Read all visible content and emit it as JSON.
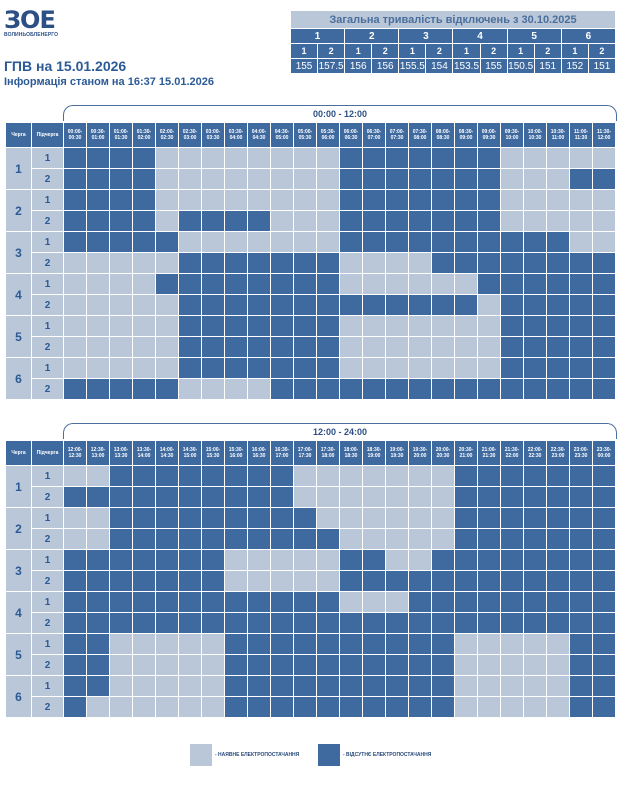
{
  "logo": {
    "main": "ЗОЕ",
    "sub": "ВОЛИНЬОБЛЕНЕРГО"
  },
  "title": "ГПВ на 15.01.2026",
  "subtitle": "Інформація станом на 16:37 15.01.2026",
  "summary": {
    "title": "Загальна тривалість відключень з 30.10.2025",
    "queues": [
      "1",
      "2",
      "3",
      "4",
      "5",
      "6"
    ],
    "subqueues": [
      "1",
      "2",
      "1",
      "2",
      "1",
      "2",
      "1",
      "2",
      "1",
      "2",
      "1",
      "2"
    ],
    "values": [
      "155",
      "157.5",
      "156",
      "156",
      "155.5",
      "154",
      "153.5",
      "155",
      "150.5",
      "151",
      "152",
      "151"
    ]
  },
  "headers": {
    "queue": "Черга",
    "subqueue": "Підчерга"
  },
  "colors": {
    "on": "#b9c7d8",
    "off": "#3f6aa0"
  },
  "sections": [
    {
      "label": "00:00 - 12:00",
      "times": [
        "00:00-00:30",
        "00:30-01:00",
        "01:00-01:30",
        "01:30-02:00",
        "02:00-02:30",
        "02:30-03:00",
        "03:00-03:30",
        "03:30-04:00",
        "04:00-04:30",
        "04:30-05:00",
        "05:00-05:30",
        "05:30-06:00",
        "06:00-06:30",
        "06:30-07:00",
        "07:00-07:30",
        "07:30-08:00",
        "08:00-08:30",
        "08:30-09:00",
        "09:00-09:30",
        "09:30-10:00",
        "10:00-10:30",
        "10:30-11:00",
        "11:00-11:30",
        "11:30-12:00"
      ],
      "rows": [
        {
          "queue": "1",
          "sub": "1",
          "off": [
            1,
            1,
            1,
            1,
            0,
            0,
            0,
            0,
            0,
            0,
            0,
            0,
            1,
            1,
            1,
            1,
            1,
            1,
            1,
            0,
            0,
            0,
            0,
            0
          ]
        },
        {
          "queue": "1",
          "sub": "2",
          "off": [
            1,
            1,
            1,
            1,
            0,
            0,
            0,
            0,
            0,
            0,
            0,
            0,
            1,
            1,
            1,
            1,
            1,
            1,
            1,
            0,
            0,
            0,
            1,
            1
          ]
        },
        {
          "queue": "2",
          "sub": "1",
          "off": [
            1,
            1,
            1,
            1,
            0,
            0,
            0,
            0,
            0,
            0,
            0,
            0,
            1,
            1,
            1,
            1,
            1,
            1,
            1,
            0,
            0,
            0,
            0,
            0
          ]
        },
        {
          "queue": "2",
          "sub": "2",
          "off": [
            1,
            1,
            1,
            1,
            0,
            1,
            1,
            1,
            1,
            0,
            0,
            0,
            1,
            1,
            1,
            1,
            1,
            1,
            1,
            0,
            0,
            0,
            0,
            0
          ]
        },
        {
          "queue": "3",
          "sub": "1",
          "off": [
            1,
            1,
            1,
            1,
            1,
            0,
            0,
            0,
            0,
            0,
            0,
            0,
            1,
            1,
            1,
            1,
            1,
            1,
            1,
            1,
            1,
            1,
            0,
            0
          ]
        },
        {
          "queue": "3",
          "sub": "2",
          "off": [
            0,
            0,
            0,
            0,
            0,
            1,
            1,
            1,
            1,
            1,
            1,
            1,
            0,
            0,
            0,
            0,
            1,
            1,
            1,
            1,
            1,
            1,
            1,
            1
          ]
        },
        {
          "queue": "4",
          "sub": "1",
          "off": [
            0,
            0,
            0,
            0,
            1,
            1,
            1,
            1,
            1,
            1,
            1,
            1,
            0,
            0,
            0,
            0,
            0,
            0,
            1,
            1,
            1,
            1,
            1,
            1
          ]
        },
        {
          "queue": "4",
          "sub": "2",
          "off": [
            0,
            0,
            0,
            0,
            0,
            1,
            1,
            1,
            1,
            1,
            1,
            1,
            1,
            1,
            1,
            1,
            1,
            1,
            0,
            1,
            1,
            1,
            1,
            1
          ]
        },
        {
          "queue": "5",
          "sub": "1",
          "off": [
            0,
            0,
            0,
            0,
            0,
            1,
            1,
            1,
            1,
            1,
            1,
            1,
            0,
            0,
            0,
            0,
            0,
            0,
            0,
            1,
            1,
            1,
            1,
            1
          ]
        },
        {
          "queue": "5",
          "sub": "2",
          "off": [
            0,
            0,
            0,
            0,
            0,
            1,
            1,
            1,
            1,
            1,
            1,
            1,
            0,
            0,
            0,
            0,
            0,
            0,
            0,
            1,
            1,
            1,
            1,
            1
          ]
        },
        {
          "queue": "6",
          "sub": "1",
          "off": [
            0,
            0,
            0,
            0,
            0,
            1,
            1,
            1,
            1,
            1,
            1,
            1,
            0,
            0,
            0,
            0,
            0,
            0,
            0,
            1,
            1,
            1,
            1,
            1
          ]
        },
        {
          "queue": "6",
          "sub": "2",
          "off": [
            1,
            1,
            1,
            1,
            1,
            0,
            0,
            0,
            0,
            1,
            1,
            1,
            1,
            1,
            1,
            1,
            1,
            1,
            1,
            1,
            1,
            1,
            1,
            1
          ]
        }
      ]
    },
    {
      "label": "12:00 - 24:00",
      "times": [
        "12:00-12:30",
        "12:30-13:00",
        "13:00-13:30",
        "13:30-14:00",
        "14:00-14:30",
        "14:30-15:00",
        "15:00-15:30",
        "15:30-16:00",
        "16:00-16:30",
        "16:30-17:00",
        "17:00-17:30",
        "17:30-18:00",
        "18:00-18:30",
        "18:30-19:00",
        "19:00-19:30",
        "19:30-20:00",
        "20:00-20:30",
        "20:30-21:00",
        "21:00-21:30",
        "21:30-22:00",
        "22:00-22:30",
        "22:30-23:00",
        "23:00-23:30",
        "23:30-00:00"
      ],
      "rows": [
        {
          "queue": "1",
          "sub": "1",
          "off": [
            0,
            0,
            1,
            1,
            1,
            1,
            1,
            1,
            1,
            1,
            0,
            0,
            0,
            0,
            0,
            0,
            0,
            1,
            1,
            1,
            1,
            1,
            1,
            1
          ]
        },
        {
          "queue": "1",
          "sub": "2",
          "off": [
            1,
            1,
            1,
            1,
            1,
            1,
            1,
            1,
            1,
            1,
            0,
            0,
            0,
            0,
            0,
            0,
            0,
            1,
            1,
            1,
            1,
            1,
            1,
            1
          ]
        },
        {
          "queue": "2",
          "sub": "1",
          "off": [
            0,
            0,
            1,
            1,
            1,
            1,
            1,
            1,
            1,
            1,
            1,
            0,
            0,
            0,
            0,
            0,
            0,
            1,
            1,
            1,
            1,
            1,
            1,
            1
          ]
        },
        {
          "queue": "2",
          "sub": "2",
          "off": [
            0,
            0,
            1,
            1,
            1,
            1,
            1,
            1,
            1,
            1,
            1,
            1,
            0,
            0,
            0,
            0,
            0,
            1,
            1,
            1,
            1,
            1,
            1,
            1
          ]
        },
        {
          "queue": "3",
          "sub": "1",
          "off": [
            1,
            1,
            1,
            1,
            1,
            1,
            1,
            0,
            0,
            0,
            0,
            0,
            1,
            1,
            0,
            0,
            1,
            1,
            1,
            1,
            1,
            1,
            1,
            1
          ]
        },
        {
          "queue": "3",
          "sub": "2",
          "off": [
            1,
            1,
            1,
            1,
            1,
            1,
            1,
            0,
            0,
            0,
            0,
            0,
            1,
            1,
            1,
            1,
            1,
            1,
            1,
            1,
            1,
            1,
            1,
            1
          ]
        },
        {
          "queue": "4",
          "sub": "1",
          "off": [
            1,
            1,
            1,
            1,
            1,
            1,
            1,
            1,
            1,
            1,
            1,
            1,
            0,
            0,
            0,
            1,
            1,
            1,
            1,
            1,
            1,
            1,
            1,
            1
          ]
        },
        {
          "queue": "4",
          "sub": "2",
          "off": [
            1,
            1,
            1,
            1,
            1,
            1,
            1,
            1,
            1,
            1,
            1,
            1,
            1,
            1,
            1,
            1,
            1,
            1,
            1,
            1,
            1,
            1,
            1,
            1
          ]
        },
        {
          "queue": "5",
          "sub": "1",
          "off": [
            1,
            1,
            0,
            0,
            0,
            0,
            0,
            1,
            1,
            1,
            1,
            1,
            1,
            1,
            1,
            1,
            1,
            0,
            0,
            0,
            0,
            0,
            1,
            1
          ]
        },
        {
          "queue": "5",
          "sub": "2",
          "off": [
            1,
            1,
            0,
            0,
            0,
            0,
            0,
            1,
            1,
            1,
            1,
            1,
            1,
            1,
            1,
            1,
            1,
            0,
            0,
            0,
            0,
            0,
            1,
            1
          ]
        },
        {
          "queue": "6",
          "sub": "1",
          "off": [
            1,
            1,
            0,
            0,
            0,
            0,
            0,
            1,
            1,
            1,
            1,
            1,
            1,
            1,
            1,
            1,
            1,
            0,
            0,
            0,
            0,
            0,
            1,
            1
          ]
        },
        {
          "queue": "6",
          "sub": "2",
          "off": [
            1,
            0,
            0,
            0,
            0,
            0,
            0,
            1,
            1,
            1,
            1,
            1,
            1,
            1,
            1,
            1,
            1,
            0,
            0,
            0,
            0,
            0,
            1,
            1
          ]
        }
      ]
    }
  ],
  "legend": {
    "on_label": "- НАЯВНЕ ЕЛЕКТРОПОСТАЧАННЯ",
    "off_label": "- ВІДСУТНЄ ЕЛЕКТРОПОСТАЧАННЯ"
  }
}
